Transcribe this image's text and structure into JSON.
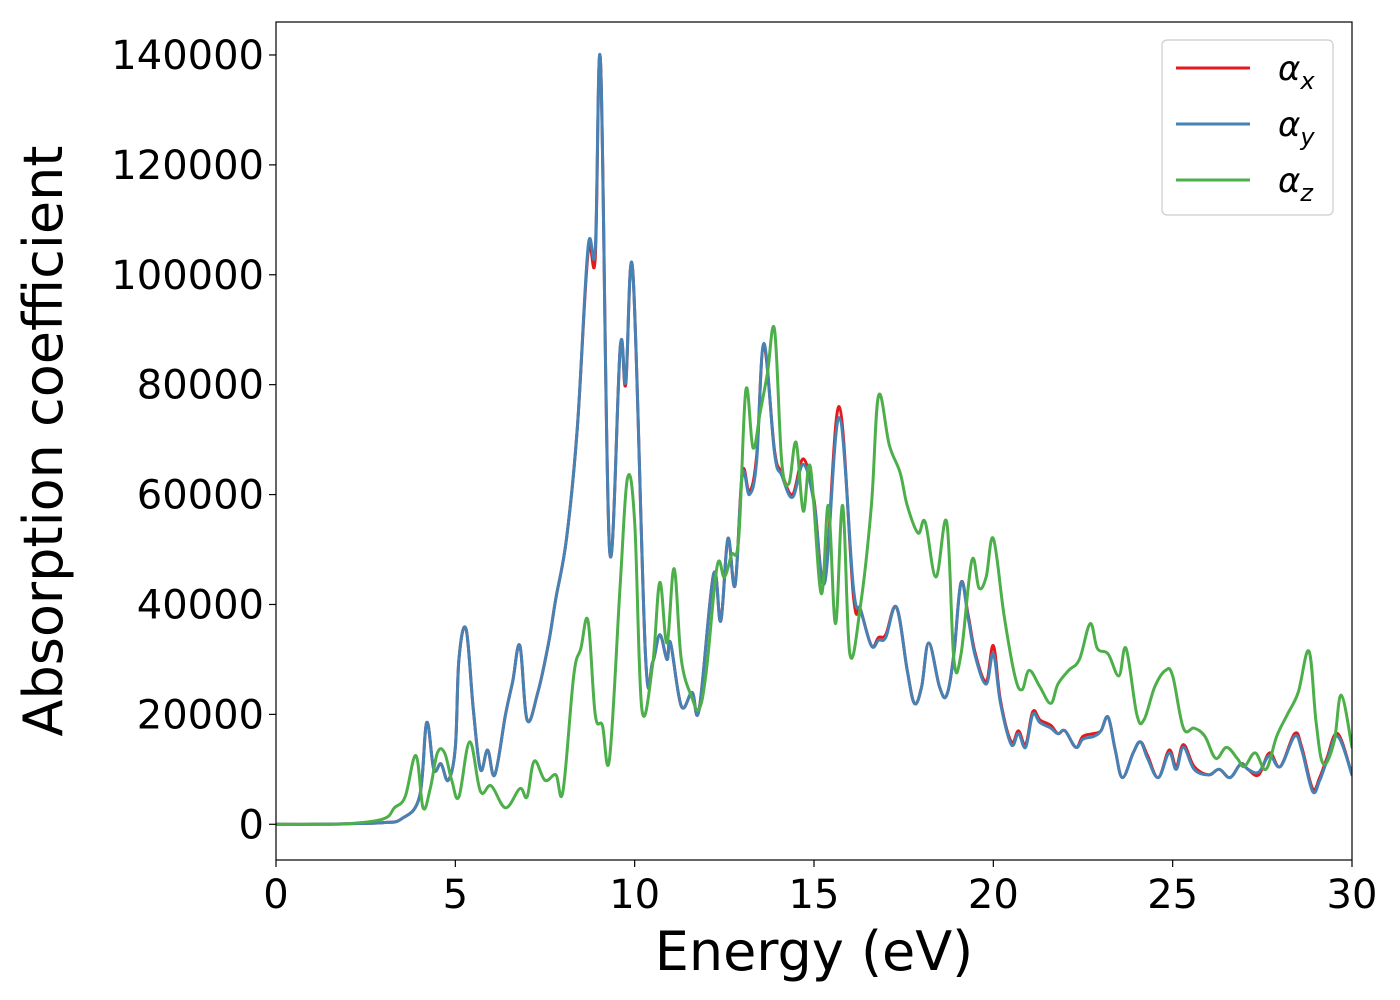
{
  "chart_data": {
    "type": "line",
    "title": "",
    "xlabel": "Energy (eV)",
    "ylabel": "Absorption coefficient",
    "xlim": [
      0,
      30
    ],
    "ylim": [
      -6500,
      146000
    ],
    "x_ticks": [
      0,
      5,
      10,
      15,
      20,
      25,
      30
    ],
    "x_tick_labels": [
      "0",
      "5",
      "10",
      "15",
      "20",
      "25",
      "30"
    ],
    "y_ticks": [
      0,
      20000,
      40000,
      60000,
      80000,
      100000,
      120000,
      140000
    ],
    "y_tick_labels": [
      "0",
      "20000",
      "40000",
      "60000",
      "80000",
      "100000",
      "120000",
      "140000"
    ],
    "grid": false,
    "legend_position": "top-right",
    "series": [
      {
        "name": "αx",
        "legend_symbol": "α",
        "legend_subscript": "x",
        "color": "#e41a1c",
        "x": [
          0,
          1,
          2,
          3,
          3.5,
          4.0,
          4.2,
          4.4,
          4.6,
          4.8,
          5.0,
          5.1,
          5.3,
          5.5,
          5.7,
          5.9,
          6.1,
          6.4,
          6.6,
          6.8,
          7.0,
          7.3,
          7.6,
          7.8,
          8.1,
          8.4,
          8.7,
          8.9,
          9.05,
          9.3,
          9.6,
          9.75,
          9.95,
          10.3,
          10.5,
          10.7,
          10.9,
          11.0,
          11.3,
          11.6,
          11.8,
          12.2,
          12.4,
          12.6,
          12.8,
          13.0,
          13.2,
          13.4,
          13.6,
          13.9,
          14.1,
          14.4,
          14.7,
          15.0,
          15.3,
          15.7,
          16.1,
          16.3,
          16.6,
          16.8,
          17.0,
          17.3,
          17.6,
          17.8,
          18.0,
          18.2,
          18.5,
          18.7,
          18.9,
          19.1,
          19.3,
          19.5,
          19.8,
          20.0,
          20.2,
          20.5,
          20.7,
          20.9,
          21.1,
          21.3,
          21.6,
          21.8,
          22.0,
          22.3,
          22.5,
          22.8,
          23.0,
          23.2,
          23.4,
          23.6,
          23.9,
          24.1,
          24.3,
          24.6,
          24.9,
          25.1,
          25.3,
          25.6,
          26.0,
          26.3,
          26.6,
          26.9,
          27.1,
          27.4,
          27.7,
          28.0,
          28.4,
          28.6,
          28.9,
          29.1,
          29.3,
          29.6,
          30.0
        ],
        "y": [
          0,
          0,
          100,
          300,
          1000,
          5000,
          18500,
          10000,
          11000,
          8000,
          14000,
          30000,
          35500,
          21000,
          10000,
          13500,
          9000,
          20000,
          26000,
          32500,
          19000,
          24000,
          33000,
          41000,
          52000,
          72000,
          104000,
          103000,
          138500,
          50000,
          87000,
          80000,
          100500,
          31000,
          29500,
          34500,
          30000,
          33000,
          21500,
          24000,
          21000,
          45500,
          37000,
          52000,
          43500,
          64000,
          60500,
          67000,
          87000,
          68000,
          64000,
          60000,
          66500,
          59000,
          44500,
          76000,
          41500,
          39000,
          32500,
          34000,
          34500,
          39500,
          28000,
          22000,
          25000,
          33000,
          25000,
          23500,
          31000,
          44000,
          38000,
          31000,
          26000,
          32500,
          22500,
          15000,
          17000,
          14500,
          20500,
          19000,
          18000,
          16500,
          17000,
          14000,
          16000,
          16500,
          17000,
          19500,
          13500,
          8500,
          13000,
          15000,
          12500,
          8500,
          13500,
          10500,
          14500,
          10500,
          9000,
          10000,
          8500,
          11000,
          10000,
          9000,
          13000,
          10500,
          16500,
          14000,
          6500,
          8500,
          12000,
          16500,
          9000
        ]
      },
      {
        "name": "αy",
        "legend_symbol": "α",
        "legend_subscript": "y",
        "color": "#4682b4",
        "x": [
          0,
          1,
          2,
          3,
          3.5,
          4.0,
          4.2,
          4.4,
          4.6,
          4.8,
          5.0,
          5.1,
          5.3,
          5.5,
          5.7,
          5.9,
          6.1,
          6.4,
          6.6,
          6.8,
          7.0,
          7.3,
          7.6,
          7.8,
          8.1,
          8.4,
          8.7,
          8.9,
          9.05,
          9.3,
          9.6,
          9.75,
          9.95,
          10.3,
          10.5,
          10.7,
          10.9,
          11.0,
          11.3,
          11.6,
          11.8,
          12.2,
          12.4,
          12.6,
          12.8,
          13.0,
          13.2,
          13.4,
          13.6,
          13.9,
          14.1,
          14.4,
          14.7,
          15.0,
          15.3,
          15.7,
          16.1,
          16.3,
          16.6,
          16.8,
          17.0,
          17.3,
          17.6,
          17.8,
          18.0,
          18.2,
          18.5,
          18.7,
          18.9,
          19.1,
          19.3,
          19.5,
          19.8,
          20.0,
          20.2,
          20.5,
          20.7,
          20.9,
          21.1,
          21.3,
          21.6,
          21.8,
          22.0,
          22.3,
          22.5,
          22.8,
          23.0,
          23.2,
          23.4,
          23.6,
          23.9,
          24.1,
          24.3,
          24.6,
          24.9,
          25.1,
          25.3,
          25.6,
          26.0,
          26.3,
          26.6,
          26.9,
          27.1,
          27.4,
          27.7,
          28.0,
          28.4,
          28.6,
          28.9,
          29.1,
          29.3,
          29.6,
          30.0
        ],
        "y": [
          0,
          0,
          100,
          300,
          1000,
          5000,
          18500,
          10000,
          11000,
          8000,
          14000,
          30000,
          35500,
          21000,
          10000,
          13500,
          9000,
          20000,
          26000,
          32500,
          19000,
          24000,
          33000,
          41000,
          52000,
          72000,
          105000,
          104500,
          138500,
          50000,
          87000,
          80500,
          100500,
          31000,
          29500,
          34500,
          30000,
          33000,
          21500,
          24000,
          21000,
          45500,
          37000,
          52000,
          43500,
          63500,
          60000,
          66000,
          87500,
          67500,
          63500,
          59500,
          65500,
          58500,
          44000,
          74000,
          43000,
          39000,
          32500,
          33500,
          34000,
          39500,
          28000,
          22000,
          25000,
          33000,
          25000,
          23500,
          31000,
          44000,
          37500,
          30500,
          25500,
          31000,
          22000,
          14500,
          16500,
          14000,
          20000,
          18500,
          17500,
          16500,
          17000,
          14000,
          15500,
          16000,
          17000,
          19500,
          13500,
          8500,
          13000,
          15000,
          12000,
          8500,
          13000,
          10000,
          14000,
          10000,
          9000,
          10000,
          8500,
          11000,
          10000,
          9500,
          12500,
          10500,
          16000,
          13500,
          6000,
          8000,
          11500,
          16000,
          9000
        ]
      },
      {
        "name": "αz",
        "legend_symbol": "α",
        "legend_subscript": "z",
        "color": "#4daf4a",
        "x": [
          0,
          1,
          2,
          3,
          3.3,
          3.6,
          3.9,
          4.1,
          4.3,
          4.5,
          4.7,
          4.9,
          5.1,
          5.4,
          5.7,
          6.0,
          6.4,
          6.8,
          7.0,
          7.2,
          7.5,
          7.8,
          8.0,
          8.3,
          8.5,
          8.7,
          8.9,
          9.1,
          9.3,
          9.6,
          9.8,
          10.0,
          10.2,
          10.5,
          10.7,
          10.9,
          11.1,
          11.3,
          11.6,
          11.8,
          12.0,
          12.3,
          12.5,
          12.7,
          12.9,
          13.1,
          13.3,
          13.5,
          13.7,
          13.9,
          14.1,
          14.3,
          14.5,
          14.7,
          14.9,
          15.2,
          15.4,
          15.6,
          15.8,
          16.0,
          16.3,
          16.6,
          16.8,
          17.1,
          17.4,
          17.6,
          17.9,
          18.1,
          18.4,
          18.7,
          18.9,
          19.1,
          19.4,
          19.6,
          19.8,
          20.0,
          20.3,
          20.6,
          20.8,
          21.0,
          21.3,
          21.6,
          21.8,
          22.1,
          22.4,
          22.7,
          22.9,
          23.2,
          23.5,
          23.7,
          24.0,
          24.2,
          24.5,
          24.8,
          25.0,
          25.3,
          25.6,
          25.9,
          26.2,
          26.5,
          26.8,
          27.0,
          27.3,
          27.6,
          27.9,
          28.2,
          28.5,
          28.8,
          29.0,
          29.2,
          29.5,
          29.7,
          30.0
        ],
        "y": [
          0,
          0,
          100,
          1000,
          3000,
          5000,
          12500,
          3000,
          6500,
          13000,
          13000,
          8000,
          5000,
          15000,
          6000,
          7000,
          3000,
          6500,
          5000,
          11500,
          8000,
          9000,
          6000,
          27000,
          32000,
          37000,
          20000,
          18000,
          12000,
          44000,
          63000,
          55000,
          21000,
          29000,
          44000,
          33000,
          46500,
          30000,
          23000,
          21000,
          28000,
          47000,
          45000,
          49000,
          52000,
          79000,
          68500,
          75000,
          82000,
          90000,
          66000,
          62000,
          69500,
          57000,
          65000,
          42000,
          58000,
          36500,
          58000,
          31000,
          40000,
          58000,
          78000,
          69000,
          64000,
          58000,
          53000,
          55000,
          45000,
          55000,
          30000,
          31000,
          48000,
          43000,
          45000,
          52000,
          38000,
          27000,
          24500,
          28000,
          25000,
          22000,
          25500,
          28000,
          30000,
          36500,
          32000,
          31000,
          27000,
          32000,
          20000,
          19000,
          25000,
          28000,
          27000,
          17500,
          17500,
          16000,
          12000,
          14000,
          12000,
          10500,
          13000,
          10000,
          16000,
          20000,
          24000,
          31500,
          18500,
          11000,
          15000,
          23500,
          14000
        ]
      }
    ]
  }
}
